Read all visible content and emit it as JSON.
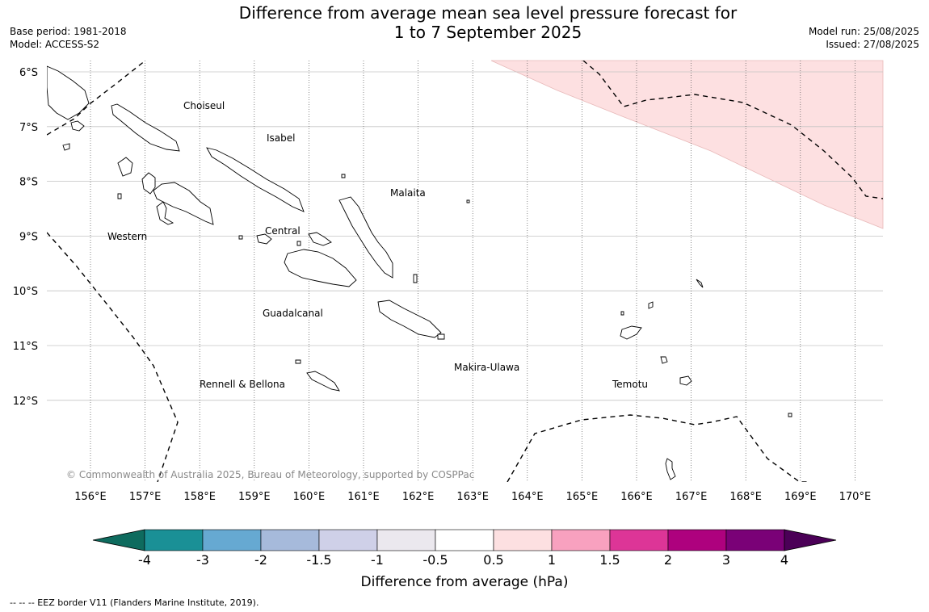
{
  "title_line1": "Difference from average mean sea level pressure forecast for",
  "title_line2": "1 to 7 September 2025",
  "base_period": "Base period: 1981-2018",
  "model": "Model: ACCESS-S2",
  "model_run": "Model run: 25/08/2025",
  "issued": "Issued: 27/08/2025",
  "copyright": "© Commonwealth of Australia 2025, Bureau of Meteorology, supported by COSPPac",
  "footer_note": "--  --  -- EEZ border V11 (Flanders Marine Institute, 2019).",
  "lat_labels": [
    "6°S",
    "7°S",
    "8°S",
    "9°S",
    "10°S",
    "11°S",
    "12°S"
  ],
  "lon_labels": [
    "156°E",
    "157°E",
    "158°E",
    "159°E",
    "160°E",
    "161°E",
    "162°E",
    "163°E",
    "164°E",
    "165°E",
    "166°E",
    "167°E",
    "168°E",
    "169°E",
    "170°E"
  ],
  "region_labels": {
    "choiseul": "Choiseul",
    "isabel": "Isabel",
    "malaita": "Malaita",
    "western": "Western",
    "central": "Central",
    "guadalcanal": "Guadalcanal",
    "makira": "Makira-Ulawa",
    "rennell": "Rennell & Bellona",
    "temotu": "Temotu"
  },
  "colorbar": {
    "label": "Difference from average (hPa)",
    "ticks": [
      "-4",
      "-3",
      "-2",
      "-1.5",
      "-1",
      "-0.5",
      "0.5",
      "1",
      "1.5",
      "2",
      "3",
      "4"
    ],
    "colors": [
      "#1a9096",
      "#66a9d2",
      "#a6badb",
      "#cfd0e8",
      "#ebe8ee",
      "#ffffff",
      "#fde0e1",
      "#f8a1bf",
      "#dd3597",
      "#ae017e",
      "#7a0177"
    ],
    "under_color": "#0e6b5e",
    "over_color": "#4b0057"
  },
  "anomaly_fill": "#fde0e1"
}
